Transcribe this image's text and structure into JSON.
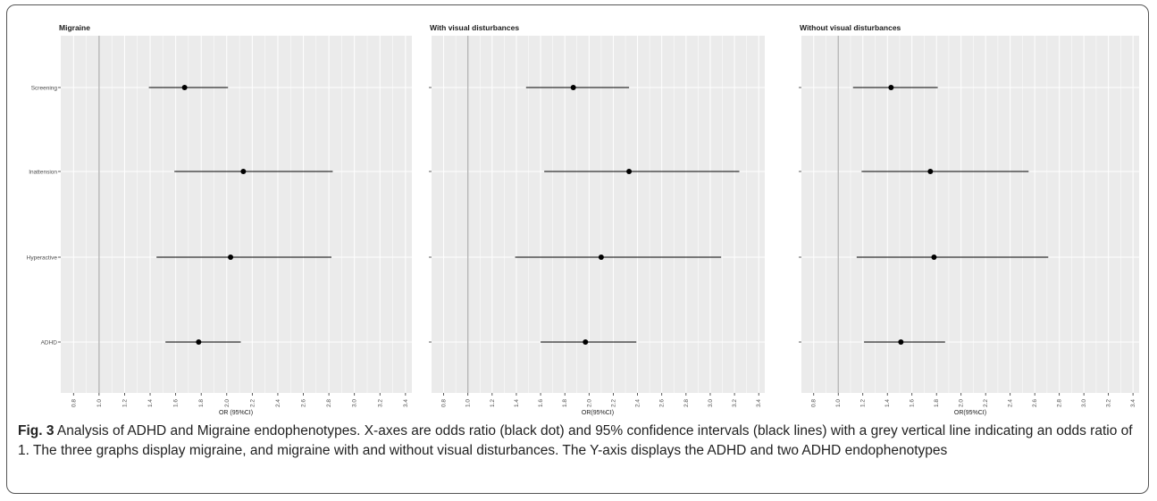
{
  "chart_data": [
    {
      "type": "forest",
      "title": "Migraine",
      "xlabel": "OR (95%CI)",
      "x_ticks": [
        "0.8",
        "1.0",
        "1.2",
        "1.4",
        "1.6",
        "1.8",
        "2.0",
        "2.2",
        "2.4",
        "2.6",
        "2.8",
        "3.0",
        "3.2",
        "3.4"
      ],
      "xlim": [
        0.7,
        3.45
      ],
      "reference_line": 1.0,
      "categories": [
        "Screening",
        "Inattension",
        "Hyperactive",
        "ADHD"
      ],
      "estimates": [
        {
          "category": "Screening",
          "or": 1.67,
          "lower": 1.39,
          "upper": 2.01
        },
        {
          "category": "Inattension",
          "or": 2.13,
          "lower": 1.59,
          "upper": 2.83
        },
        {
          "category": "Hyperactive",
          "or": 2.03,
          "lower": 1.45,
          "upper": 2.82
        },
        {
          "category": "ADHD",
          "or": 1.78,
          "lower": 1.52,
          "upper": 2.11
        }
      ]
    },
    {
      "type": "forest",
      "title": "With visual disturbances",
      "xlabel": "OR(95%CI)",
      "x_ticks": [
        "0.8",
        "1.0",
        "1.2",
        "1.4",
        "1.6",
        "1.8",
        "2.0",
        "2.2",
        "2.4",
        "2.6",
        "2.8",
        "3.0",
        "3.2",
        "3.4"
      ],
      "xlim": [
        0.7,
        3.45
      ],
      "reference_line": 1.0,
      "categories": [
        "Screening",
        "Inattension",
        "Hyperactive",
        "ADHD"
      ],
      "estimates": [
        {
          "category": "Screening",
          "or": 1.87,
          "lower": 1.48,
          "upper": 2.33
        },
        {
          "category": "Inattension",
          "or": 2.33,
          "lower": 1.63,
          "upper": 3.24
        },
        {
          "category": "Hyperactive",
          "or": 2.1,
          "lower": 1.39,
          "upper": 3.09
        },
        {
          "category": "ADHD",
          "or": 1.97,
          "lower": 1.6,
          "upper": 2.39
        }
      ]
    },
    {
      "type": "forest",
      "title": "Without visual disturbances",
      "xlabel": "OR(95%CI)",
      "x_ticks": [
        "0.8",
        "1.0",
        "1.2",
        "1.4",
        "1.6",
        "1.8",
        "2.0",
        "2.2",
        "2.4",
        "2.6",
        "2.8",
        "3.0",
        "3.2",
        "3.4"
      ],
      "xlim": [
        0.7,
        3.45
      ],
      "reference_line": 1.0,
      "categories": [
        "Screening",
        "Inattension",
        "Hyperactive",
        "ADHD"
      ],
      "estimates": [
        {
          "category": "Screening",
          "or": 1.43,
          "lower": 1.12,
          "upper": 1.81
        },
        {
          "category": "Inattension",
          "or": 1.75,
          "lower": 1.19,
          "upper": 2.55
        },
        {
          "category": "Hyperactive",
          "or": 1.78,
          "lower": 1.15,
          "upper": 2.71
        },
        {
          "category": "ADHD",
          "or": 1.51,
          "lower": 1.21,
          "upper": 1.87
        }
      ]
    }
  ],
  "caption": {
    "label": "Fig. 3",
    "text": " Analysis of ADHD and Migraine endophenotypes. X-axes are odds ratio (black dot) and 95% confidence intervals (black lines) with a grey vertical line indicating an odds ratio of 1. The three graphs display migraine, and migraine with and without visual disturbances. The Y-axis displays the ADHD and two ADHD endophenotypes"
  },
  "colors": {
    "panel_bg": "#ebebeb",
    "grid": "#ffffff",
    "reference_line": "#b3b3b3",
    "point": "#000000",
    "ci_line": "#000000",
    "axis_text": "#4d4d4d"
  }
}
